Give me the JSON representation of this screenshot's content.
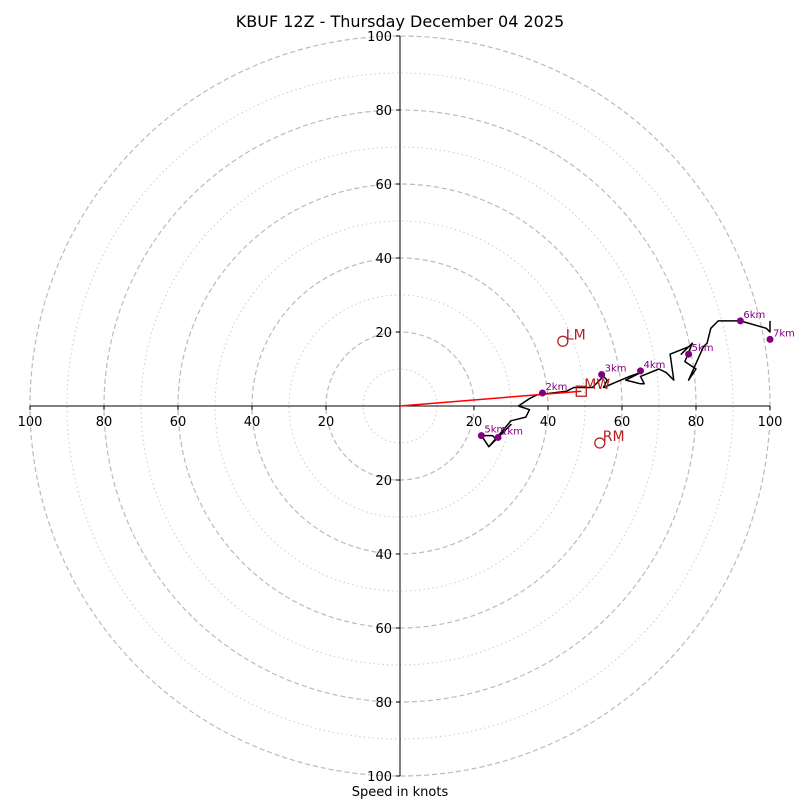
{
  "chart_data": {
    "type": "hodograph",
    "title": "KBUF 12Z - Thursday December 04 2025",
    "xlabel": "Speed in knots",
    "ylabel": "",
    "range": [
      -100,
      100
    ],
    "ticks": {
      "x": [
        {
          "v": -100,
          "label": "100"
        },
        {
          "v": -80,
          "label": "80"
        },
        {
          "v": -60,
          "label": "60"
        },
        {
          "v": -40,
          "label": "40"
        },
        {
          "v": -20,
          "label": "20"
        },
        {
          "v": 20,
          "label": "20"
        },
        {
          "v": 40,
          "label": "40"
        },
        {
          "v": 60,
          "label": "60"
        },
        {
          "v": 80,
          "label": "80"
        },
        {
          "v": 100,
          "label": "100"
        }
      ],
      "y": [
        {
          "v": 100,
          "label": "100"
        },
        {
          "v": 80,
          "label": "80"
        },
        {
          "v": 60,
          "label": "60"
        },
        {
          "v": 40,
          "label": "40"
        },
        {
          "v": 20,
          "label": "20"
        },
        {
          "v": -20,
          "label": "20"
        },
        {
          "v": -40,
          "label": "40"
        },
        {
          "v": -60,
          "label": "60"
        },
        {
          "v": -80,
          "label": "80"
        },
        {
          "v": -100,
          "label": "100"
        }
      ]
    },
    "rings_major": [
      20,
      40,
      60,
      80,
      100
    ],
    "rings_minor": [
      10,
      30,
      50,
      70,
      90
    ],
    "colors": {
      "trace": "#000000",
      "markers": "#800080",
      "motion": "#b22222",
      "shear": "#ff0000",
      "ring": "#bbbbbb",
      "axis": "#000000"
    },
    "hodograph_trace": [
      [
        24,
        -11
      ],
      [
        22,
        -8
      ],
      [
        25,
        -8
      ],
      [
        26,
        -9
      ],
      [
        30,
        -5
      ],
      [
        24,
        -11
      ],
      [
        30,
        -4
      ],
      [
        34,
        -3
      ],
      [
        35,
        -1
      ],
      [
        32,
        0
      ],
      [
        35,
        2
      ],
      [
        37,
        3
      ],
      [
        45,
        4
      ],
      [
        47,
        5
      ],
      [
        52,
        5
      ],
      [
        55,
        8
      ],
      [
        56,
        7
      ],
      [
        55,
        5
      ],
      [
        62,
        8
      ],
      [
        65,
        9
      ],
      [
        63,
        8
      ],
      [
        61,
        7
      ],
      [
        65,
        6
      ],
      [
        66,
        6
      ],
      [
        65,
        8
      ],
      [
        70,
        10
      ],
      [
        72,
        9
      ],
      [
        74,
        7
      ],
      [
        73,
        14
      ],
      [
        78,
        16
      ],
      [
        76,
        14
      ],
      [
        79,
        17
      ],
      [
        77,
        12
      ],
      [
        80,
        10
      ],
      [
        78,
        7
      ],
      [
        82,
        16
      ],
      [
        83,
        17
      ],
      [
        84,
        21
      ],
      [
        86,
        23
      ],
      [
        90,
        23
      ],
      [
        92,
        23
      ],
      [
        99,
        21
      ],
      [
        100,
        20
      ],
      [
        100,
        23
      ]
    ],
    "height_markers": [
      {
        "label": "1km",
        "u": 26.5,
        "v": -8.5
      },
      {
        "label": "2km",
        "u": 38.5,
        "v": 3.5
      },
      {
        "label": "3km",
        "u": 54.5,
        "v": 8.5
      },
      {
        "label": "4km",
        "u": 65,
        "v": 9.5
      },
      {
        "label": "5km",
        "u": 78,
        "v": 14
      },
      {
        "label": "6km",
        "u": 92,
        "v": 23
      },
      {
        "label": "5km",
        "u": 22,
        "v": -8
      },
      {
        "label": "7km",
        "u": 100,
        "v": 18
      }
    ],
    "storm_motions": [
      {
        "label": "LM",
        "u": 44,
        "v": 17.5,
        "shape": "circle"
      },
      {
        "label": "RM",
        "u": 54,
        "v": -10,
        "shape": "circle"
      },
      {
        "label": "MW",
        "u": 49,
        "v": 4,
        "shape": "square"
      }
    ],
    "shear_vector": {
      "from": [
        0,
        0
      ],
      "to": [
        49,
        4
      ]
    }
  }
}
